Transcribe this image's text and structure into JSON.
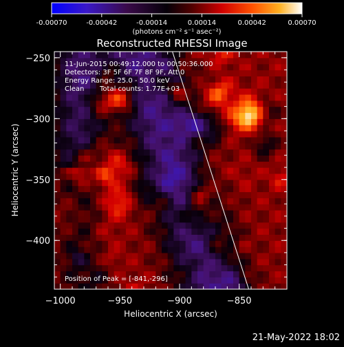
{
  "chart_data": {
    "type": "heatmap",
    "title": "Reconstructed RHESSI Image",
    "xlabel": "Heliocentric X (arcsec)",
    "ylabel": "Heliocentric Y (arcsec)",
    "xlim": [
      -1005,
      -810
    ],
    "ylim": [
      -440,
      -245
    ],
    "x_ticks": [
      "-1000",
      "-950",
      "-900",
      "-850"
    ],
    "y_ticks": [
      "-250",
      "-300",
      "-350",
      "-400"
    ],
    "annotations": [
      "11-Jun-2015 00:49:12.000 to 00:50:36.000",
      "Detectors: 3F 5F 6F 7F 8F 9F, Att 0",
      "Energy Range: 25.0 - 50.0 keV",
      "Clean",
      "Total counts: 1.77E+03"
    ],
    "peak_label": "Position of Peak = [-841,-296]",
    "peak": [
      -841,
      -296
    ],
    "colorbar": {
      "ticks": [
        "-0.00070",
        "-0.00042",
        "-0.00014",
        "0.00014",
        "0.00042",
        "0.00070"
      ],
      "range": [
        -0.0007,
        0.0007
      ],
      "unit_label": "(photons cm⁻² s⁻¹ asec⁻²)",
      "colors": [
        "#0000ff",
        "#4020c0",
        "#300040",
        "#100010",
        "#800000",
        "#ff2000",
        "#ff8000",
        "#ffffff"
      ]
    },
    "limb_line": [
      [
        -906,
        -245
      ],
      [
        -842,
        -440
      ]
    ]
  },
  "footer": {
    "timestamp": "21-May-2022 18:02"
  }
}
